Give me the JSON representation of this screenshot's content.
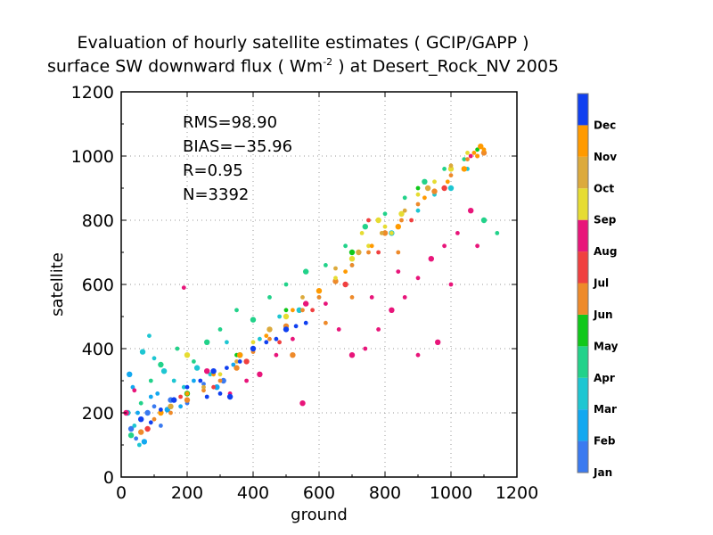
{
  "chart_data": {
    "type": "scatter",
    "title": "Evaluation of hourly satellite estimates ( GCIP/GAPP )",
    "subtitle_parts": [
      "surface SW downward flux ( Wm",
      "-2",
      " ) at Desert_Rock_NV 2005"
    ],
    "xlabel": "ground",
    "ylabel": "satellite",
    "xlim": [
      0,
      1200
    ],
    "ylim": [
      0,
      1200
    ],
    "xticks": [
      "0",
      "200",
      "400",
      "600",
      "800",
      "1000",
      "1200"
    ],
    "yticks": [
      "0",
      "200",
      "400",
      "600",
      "800",
      "1000",
      "1200"
    ],
    "grid": true,
    "stats": [
      "RMS=98.90",
      "BIAS=−35.96",
      "R=0.95",
      "N=3392"
    ],
    "colorbar": {
      "placement": "right",
      "labels": [
        "Jan",
        "Feb",
        "Mar",
        "Apr",
        "May",
        "Jun",
        "Jul",
        "Aug",
        "Sep",
        "Oct",
        "Nov",
        "Dec"
      ],
      "colors": [
        "#3a7af0",
        "#12a8f0",
        "#1ec6d2",
        "#22d28a",
        "#10c81a",
        "#ee8a2a",
        "#f04040",
        "#e8157a",
        "#e6dc32",
        "#dcaa3c",
        "#ff9a00",
        "#1040f0"
      ]
    },
    "series": [
      {
        "name": "Jan",
        "points": [
          [
            30,
            150
          ],
          [
            45,
            120
          ],
          [
            60,
            180
          ],
          [
            80,
            200
          ],
          [
            100,
            220
          ],
          [
            120,
            160
          ],
          [
            150,
            240
          ],
          [
            200,
            230
          ],
          [
            250,
            290
          ],
          [
            310,
            300
          ]
        ]
      },
      {
        "name": "Feb",
        "points": [
          [
            25,
            320
          ],
          [
            35,
            280
          ],
          [
            50,
            200
          ],
          [
            70,
            110
          ],
          [
            90,
            250
          ],
          [
            110,
            260
          ],
          [
            140,
            210
          ],
          [
            180,
            220
          ],
          [
            220,
            300
          ],
          [
            290,
            280
          ],
          [
            340,
            350
          ]
        ]
      },
      {
        "name": "Mar",
        "points": [
          [
            20,
            200
          ],
          [
            40,
            160
          ],
          [
            55,
            100
          ],
          [
            65,
            390
          ],
          [
            85,
            440
          ],
          [
            100,
            370
          ],
          [
            130,
            330
          ],
          [
            160,
            300
          ],
          [
            190,
            280
          ],
          [
            230,
            340
          ],
          [
            270,
            320
          ],
          [
            320,
            420
          ],
          [
            360,
            380
          ],
          [
            420,
            430
          ],
          [
            480,
            500
          ],
          [
            540,
            520
          ],
          [
            600,
            560
          ],
          [
            700,
            660
          ],
          [
            820,
            760
          ],
          [
            900,
            830
          ],
          [
            950,
            880
          ],
          [
            1000,
            900
          ],
          [
            1050,
            960
          ]
        ]
      },
      {
        "name": "Apr",
        "points": [
          [
            30,
            130
          ],
          [
            60,
            230
          ],
          [
            90,
            300
          ],
          [
            120,
            350
          ],
          [
            170,
            400
          ],
          [
            220,
            360
          ],
          [
            260,
            420
          ],
          [
            300,
            460
          ],
          [
            350,
            520
          ],
          [
            400,
            490
          ],
          [
            450,
            560
          ],
          [
            500,
            600
          ],
          [
            560,
            640
          ],
          [
            620,
            660
          ],
          [
            680,
            720
          ],
          [
            740,
            780
          ],
          [
            800,
            820
          ],
          [
            860,
            870
          ],
          [
            920,
            920
          ],
          [
            980,
            960
          ],
          [
            1040,
            990
          ],
          [
            1100,
            800
          ],
          [
            1140,
            760
          ]
        ]
      },
      {
        "name": "May",
        "points": [
          [
            200,
            260
          ],
          [
            350,
            380
          ],
          [
            500,
            520
          ],
          [
            700,
            700
          ],
          [
            900,
            900
          ],
          [
            1080,
            1020
          ]
        ]
      },
      {
        "name": "Jun",
        "points": [
          [
            60,
            140
          ],
          [
            100,
            180
          ],
          [
            150,
            200
          ],
          [
            200,
            240
          ],
          [
            250,
            270
          ],
          [
            300,
            300
          ],
          [
            350,
            340
          ],
          [
            400,
            390
          ],
          [
            450,
            430
          ],
          [
            500,
            470
          ],
          [
            550,
            520
          ],
          [
            600,
            560
          ],
          [
            650,
            610
          ],
          [
            700,
            660
          ],
          [
            750,
            700
          ],
          [
            800,
            760
          ],
          [
            850,
            800
          ],
          [
            900,
            850
          ],
          [
            950,
            890
          ],
          [
            1000,
            940
          ],
          [
            1050,
            990
          ],
          [
            1100,
            1010
          ],
          [
            620,
            480
          ],
          [
            700,
            560
          ],
          [
            520,
            380
          ],
          [
            840,
            700
          ]
        ]
      },
      {
        "name": "Jul",
        "points": [
          [
            80,
            150
          ],
          [
            180,
            250
          ],
          [
            280,
            280
          ],
          [
            380,
            360
          ],
          [
            480,
            420
          ],
          [
            580,
            520
          ],
          [
            680,
            600
          ],
          [
            780,
            700
          ],
          [
            880,
            800
          ],
          [
            980,
            900
          ],
          [
            1080,
            1000
          ],
          [
            750,
            800
          ]
        ]
      },
      {
        "name": "Aug",
        "points": [
          [
            15,
            200
          ],
          [
            40,
            270
          ],
          [
            190,
            590
          ],
          [
            260,
            330
          ],
          [
            330,
            260
          ],
          [
            380,
            300
          ],
          [
            420,
            320
          ],
          [
            470,
            380
          ],
          [
            520,
            430
          ],
          [
            560,
            540
          ],
          [
            620,
            540
          ],
          [
            660,
            460
          ],
          [
            700,
            380
          ],
          [
            740,
            400
          ],
          [
            780,
            460
          ],
          [
            820,
            520
          ],
          [
            860,
            560
          ],
          [
            900,
            620
          ],
          [
            940,
            680
          ],
          [
            980,
            720
          ],
          [
            1020,
            760
          ],
          [
            1060,
            830
          ],
          [
            1080,
            720
          ],
          [
            1000,
            600
          ],
          [
            960,
            420
          ],
          [
            900,
            380
          ],
          [
            1060,
            1000
          ],
          [
            550,
            230
          ],
          [
            760,
            560
          ],
          [
            840,
            640
          ]
        ]
      },
      {
        "name": "Sep",
        "points": [
          [
            200,
            380
          ],
          [
            300,
            320
          ],
          [
            400,
            420
          ],
          [
            500,
            500
          ],
          [
            600,
            580
          ],
          [
            650,
            620
          ],
          [
            700,
            680
          ],
          [
            750,
            720
          ],
          [
            800,
            780
          ],
          [
            850,
            820
          ],
          [
            900,
            880
          ],
          [
            950,
            920
          ],
          [
            1000,
            960
          ],
          [
            1050,
            1010
          ],
          [
            730,
            760
          ],
          [
            780,
            800
          ],
          [
            820,
            760
          ]
        ]
      },
      {
        "name": "Oct",
        "points": [
          [
            150,
            220
          ],
          [
            250,
            280
          ],
          [
            350,
            360
          ],
          [
            450,
            460
          ],
          [
            550,
            560
          ],
          [
            650,
            650
          ],
          [
            720,
            700
          ],
          [
            790,
            760
          ],
          [
            860,
            830
          ],
          [
            930,
            900
          ],
          [
            1000,
            970
          ]
        ]
      },
      {
        "name": "Nov",
        "points": [
          [
            120,
            200
          ],
          [
            200,
            260
          ],
          [
            280,
            320
          ],
          [
            360,
            380
          ],
          [
            440,
            440
          ],
          [
            520,
            520
          ],
          [
            600,
            580
          ],
          [
            680,
            640
          ],
          [
            760,
            720
          ],
          [
            840,
            780
          ],
          [
            920,
            870
          ],
          [
            990,
            920
          ],
          [
            1040,
            960
          ],
          [
            1080,
            1000
          ],
          [
            1100,
            1020
          ],
          [
            1090,
            1030
          ],
          [
            1070,
            1010
          ]
        ]
      },
      {
        "name": "Dec",
        "points": [
          [
            60,
            180
          ],
          [
            90,
            170
          ],
          [
            120,
            210
          ],
          [
            160,
            240
          ],
          [
            200,
            280
          ],
          [
            240,
            300
          ],
          [
            280,
            330
          ],
          [
            320,
            340
          ],
          [
            360,
            360
          ],
          [
            400,
            400
          ],
          [
            440,
            420
          ],
          [
            470,
            430
          ],
          [
            500,
            460
          ],
          [
            530,
            470
          ],
          [
            560,
            480
          ],
          [
            330,
            250
          ],
          [
            300,
            260
          ],
          [
            260,
            250
          ]
        ]
      }
    ]
  }
}
